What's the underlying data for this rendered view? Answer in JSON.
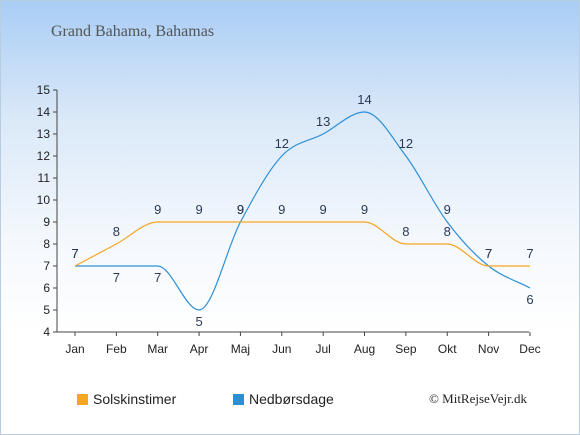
{
  "chart_data": {
    "type": "line",
    "title": "Grand Bahama, Bahamas",
    "categories": [
      "Jan",
      "Feb",
      "Mar",
      "Apr",
      "Maj",
      "Jun",
      "Jul",
      "Aug",
      "Sep",
      "Okt",
      "Nov",
      "Dec"
    ],
    "ylim": [
      4,
      15
    ],
    "yticks": [
      4,
      5,
      6,
      7,
      8,
      9,
      10,
      11,
      12,
      13,
      14,
      15
    ],
    "grid": false,
    "legend_position": "bottom",
    "series": [
      {
        "name": "Solskinstimer",
        "color": "#f5a623",
        "values": [
          7,
          8,
          9,
          9,
          9,
          9,
          9,
          9,
          8,
          8,
          7,
          7
        ]
      },
      {
        "name": "Nedbørsdage",
        "color": "#2b8fd6",
        "values": [
          7,
          7,
          7,
          5,
          9,
          12,
          13,
          14,
          12,
          9,
          7,
          6
        ]
      }
    ]
  },
  "credit": "© MitRejseVejr.dk"
}
